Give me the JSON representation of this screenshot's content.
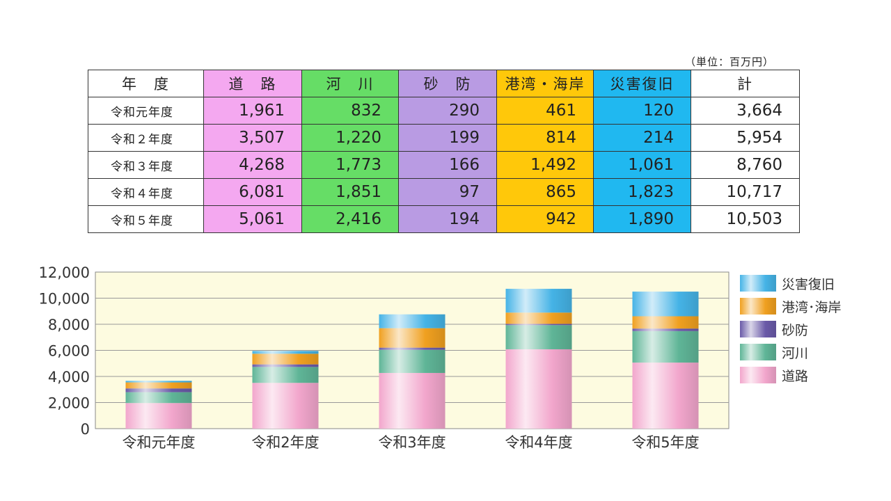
{
  "unit_note": "（単位：百万円）",
  "table": {
    "headers": [
      "年　度",
      "道　路",
      "河　川",
      "砂　防",
      "港湾・海岸",
      "災害復旧",
      "計"
    ],
    "header_colors": [
      "#ffffff",
      "#f4a8f0",
      "#66dd66",
      "#b99be3",
      "#ffc80a",
      "#20b8f0",
      "#ffffff"
    ],
    "rows": [
      {
        "year": "令和元年度",
        "values": [
          "1,961",
          "832",
          "290",
          "461",
          "120",
          "3,664"
        ]
      },
      {
        "year": "令和２年度",
        "values": [
          "3,507",
          "1,220",
          "199",
          "814",
          "214",
          "5,954"
        ]
      },
      {
        "year": "令和３年度",
        "values": [
          "4,268",
          "1,773",
          "166",
          "1,492",
          "1,061",
          "8,760"
        ]
      },
      {
        "year": "令和４年度",
        "values": [
          "6,081",
          "1,851",
          "97",
          "865",
          "1,823",
          "10,717"
        ]
      },
      {
        "year": "令和５年度",
        "values": [
          "5,061",
          "2,416",
          "194",
          "942",
          "1,890",
          "10,503"
        ]
      }
    ]
  },
  "chart_data": {
    "type": "bar",
    "stacked": true,
    "categories": [
      "令和元年度",
      "令和2年度",
      "令和3年度",
      "令和4年度",
      "令和5年度"
    ],
    "series": [
      {
        "name": "道路",
        "values": [
          1961,
          3507,
          4268,
          6081,
          5061
        ],
        "color": "#f2a6cc"
      },
      {
        "name": "河川",
        "values": [
          832,
          1220,
          1773,
          1851,
          2416
        ],
        "color": "#5fb597"
      },
      {
        "name": "砂防",
        "values": [
          290,
          199,
          166,
          97,
          194
        ],
        "color": "#6a5aa8"
      },
      {
        "name": "港湾･海岸",
        "values": [
          461,
          814,
          1492,
          865,
          942
        ],
        "color": "#f0a020"
      },
      {
        "name": "災害復旧",
        "values": [
          120,
          214,
          1061,
          1823,
          1890
        ],
        "color": "#45b3e6"
      }
    ],
    "ylim": [
      0,
      12000
    ],
    "yticks": [
      "0",
      "2,000",
      "4,000",
      "6,000",
      "8,000",
      "10,000",
      "12,000"
    ],
    "ytick_values": [
      0,
      2000,
      4000,
      6000,
      8000,
      10000,
      12000
    ],
    "grid": true,
    "legend_position": "right",
    "plot_background": "#fdfbe0"
  }
}
